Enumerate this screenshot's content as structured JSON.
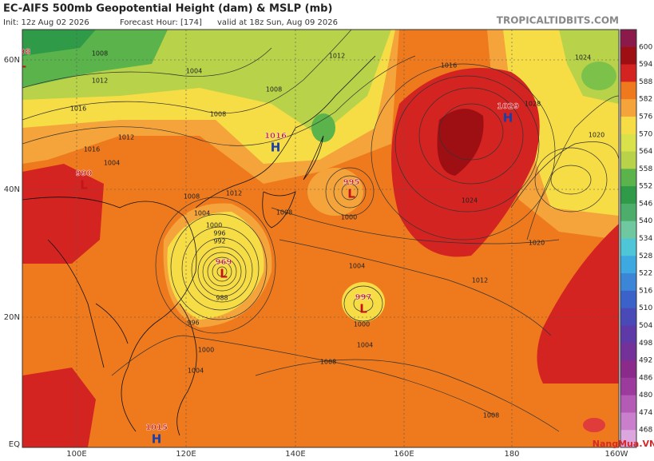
{
  "header": {
    "title": "EC-AIFS 500mb Geopotential Height (dam) & MSLP (mb)",
    "init": "Init: 12z Aug 02 2026",
    "forecast_hour": "Forecast Hour: [174]",
    "valid": "valid at 18z Sun, Aug 09 2026",
    "site": "TROPICALTIDBITS.COM"
  },
  "map": {
    "lon_labels": [
      "100E",
      "120E",
      "140E",
      "160E",
      "180",
      "160W"
    ],
    "lat_labels": [
      "60N",
      "40N",
      "20N",
      "EQ"
    ],
    "pressure_centers": [
      {
        "value": 998,
        "symbol": "L"
      },
      {
        "value": 1016,
        "symbol": "H"
      },
      {
        "value": 995,
        "symbol": "L"
      },
      {
        "value": 1029,
        "symbol": "H"
      },
      {
        "value": 990,
        "symbol": "L"
      },
      {
        "value": 969,
        "symbol": "L"
      },
      {
        "value": 997,
        "symbol": "L"
      },
      {
        "value": 1015,
        "symbol": "H"
      }
    ],
    "contour_labels": [
      1008,
      1012,
      1004,
      1008,
      1012,
      1016,
      1024,
      1016,
      1008,
      1012,
      1016,
      1004,
      1004,
      1008,
      1012,
      1008,
      1000,
      1004,
      1024,
      1020,
      1012,
      1020,
      1028,
      1000,
      996,
      992,
      988,
      996,
      1000,
      1004,
      1000,
      1004,
      1008,
      1008
    ]
  },
  "colorbar": {
    "levels": [
      600,
      594,
      588,
      582,
      576,
      570,
      564,
      558,
      552,
      546,
      540,
      534,
      528,
      522,
      516,
      510,
      504,
      498,
      492,
      486,
      480,
      474,
      468
    ]
  },
  "watermark": "NangMua.VN"
}
